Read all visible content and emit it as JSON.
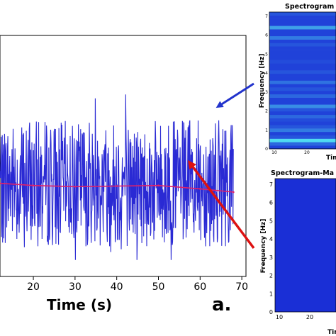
{
  "chart_data": [
    {
      "type": "line",
      "title": "",
      "xlabel": "Time (s)",
      "ylabel": "",
      "xlim": [
        12,
        71
      ],
      "ylim": [
        -1.7,
        2.7
      ],
      "xticks": [
        20,
        30,
        40,
        50,
        60,
        70
      ],
      "grid": false,
      "panel_label": "a.",
      "series": [
        {
          "color": "#2a2ad4",
          "x_range": [
            0,
            68
          ],
          "x": [
            12,
            14,
            16,
            18,
            20,
            22,
            24,
            26,
            28,
            30,
            32,
            34,
            36,
            38,
            40,
            42,
            44,
            46,
            48,
            50,
            52,
            54,
            56,
            58,
            60,
            62,
            64,
            66,
            68
          ],
          "y": [
            0.1,
            0.9,
            -0.6,
            1.3,
            -0.9,
            0.4,
            1.8,
            -1.2,
            0.7,
            -0.3,
            1.6,
            -1.0,
            0.2,
            1.4,
            -0.8,
            0.9,
            -1.4,
            1.7,
            -0.5,
            0.3,
            1.2,
            -1.1,
            0.6,
            -1.5,
            1.0,
            -0.4,
            1.3,
            -0.7,
            0.0
          ]
        },
        {
          "color": "#e0206a",
          "x": [
            12,
            20,
            30,
            40,
            50,
            60,
            68
          ],
          "y": [
            0.0,
            -0.04,
            -0.06,
            -0.05,
            -0.04,
            -0.1,
            -0.16
          ]
        }
      ]
    },
    {
      "type": "heatmap",
      "title": "Spectrogram",
      "xlabel": "Tim",
      "ylabel": "Frequency [Hz]",
      "yticks": [
        "0",
        "1",
        "2",
        "3",
        "4",
        "5",
        "6",
        "7"
      ],
      "xticks": [
        "10",
        "20"
      ],
      "rows_intensity": [
        0.1,
        0.3,
        0.9,
        0.2,
        0.1,
        0.4,
        0.2,
        0.1,
        0.15,
        0.3,
        0.1,
        0.2,
        0.5,
        0.1,
        0.1,
        0.3,
        0.1,
        0.2,
        0.1,
        0.35,
        0.1,
        0.1,
        0.2,
        0.1,
        0.1,
        0.15,
        0.1,
        0.1,
        0.1,
        0.1,
        0.2,
        0.1,
        0.4,
        0.1,
        0.1,
        0.6,
        0.1,
        0.1,
        0.1,
        0.2
      ]
    },
    {
      "type": "heatmap",
      "title": "Spectrogram-Ma",
      "xlabel": "Tim",
      "ylabel": "Frequency [Hz]",
      "yticks": [
        "0",
        "1",
        "2",
        "3",
        "4",
        "5",
        "6",
        "7"
      ],
      "xticks": [
        "10",
        "20"
      ],
      "rows_intensity": [
        0.05
      ]
    }
  ],
  "colors": {
    "signal": "#2a2ad4",
    "trend": "#e0206a",
    "arrow_blue": "#2233cc",
    "arrow_red": "#dd1111",
    "spectrogram_base": "#1a2fd6"
  }
}
